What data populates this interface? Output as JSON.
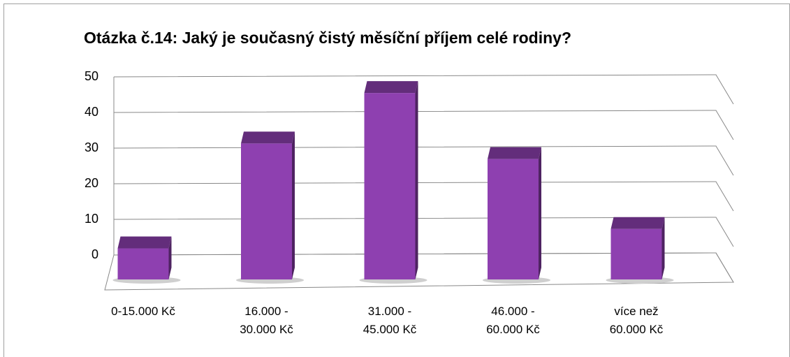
{
  "chart_data": {
    "type": "bar3d",
    "title": "Otázka č.14: Jaký je současný čistý měsíční příjem celé rodiny?",
    "categories": [
      "0-15.000 Kč",
      "16.000 - 30.000 Kč",
      "31.000 - 45.000 Kč",
      "46.000 - 60.000 Kč",
      "více než 60.000 Kč"
    ],
    "values": [
      8,
      35,
      48,
      31,
      13
    ],
    "color": "#8e40b0",
    "ylim": [
      0,
      50
    ],
    "yticks": [
      0,
      10,
      20,
      30,
      40,
      50
    ],
    "grid": true
  }
}
